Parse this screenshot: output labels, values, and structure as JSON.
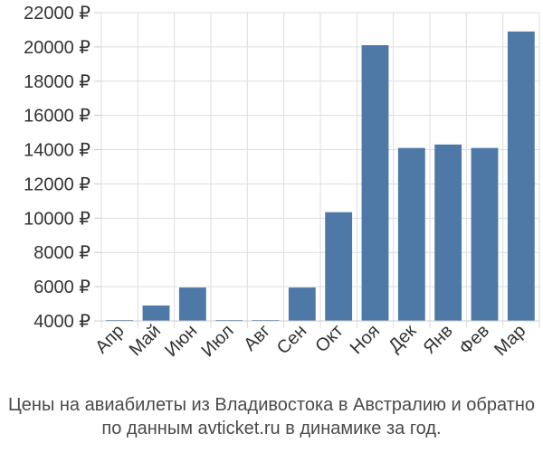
{
  "chart_data": {
    "type": "bar",
    "categories": [
      "Апр",
      "Май",
      "Июн",
      "Июл",
      "Авг",
      "Сен",
      "Окт",
      "Ноя",
      "Дек",
      "Янв",
      "Фев",
      "Мар"
    ],
    "values": [
      4000,
      4900,
      5950,
      4020,
      4020,
      5950,
      10350,
      20100,
      14100,
      14300,
      14100,
      20900
    ],
    "ylim": [
      4000,
      22000
    ],
    "yticks": [
      4000,
      6000,
      8000,
      10000,
      12000,
      14000,
      16000,
      18000,
      20000,
      22000
    ],
    "ytick_labels": [
      "4000 ₽",
      "6000 ₽",
      "8000 ₽",
      "10000 ₽",
      "12000 ₽",
      "14000 ₽",
      "16000 ₽",
      "18000 ₽",
      "20000 ₽",
      "22000 ₽"
    ],
    "title": "",
    "xlabel": "",
    "ylabel": "",
    "grid": true,
    "legend": "none",
    "bar_color": "#4e79a7",
    "grid_color": "#dddddd"
  },
  "caption": {
    "line1": "Цены на авиабилеты из Владивостока в Австралию и обратно",
    "line2": "по данным avticket.ru в динамике за год."
  }
}
